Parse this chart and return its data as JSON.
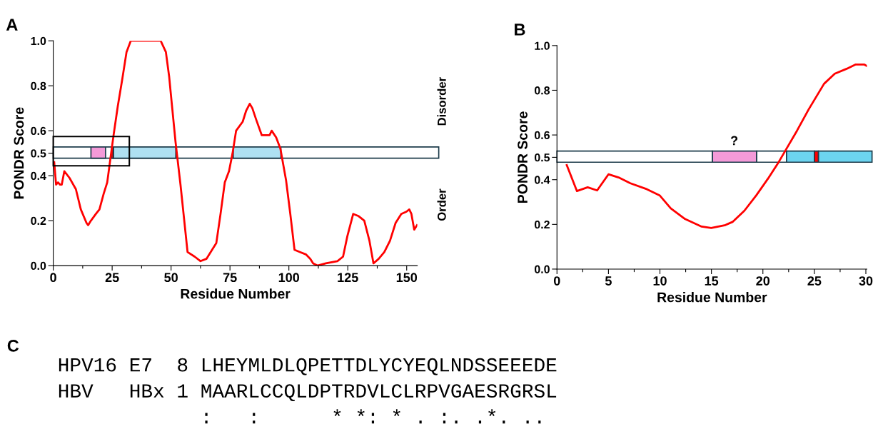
{
  "chart_data": [
    {
      "type": "line",
      "title": "A",
      "xlabel": "Residue Number",
      "ylabel": "PONDR Score",
      "x": [
        0.4,
        1.2,
        2,
        2.9,
        3.6,
        4.7,
        6.9,
        9.6,
        11.7,
        14.1,
        14.8,
        16,
        18.1,
        19.6,
        21.4,
        22.9,
        23.8,
        25.6,
        27.4,
        29.3,
        31.1,
        32.9,
        45.6,
        47.8,
        49.2,
        50.4,
        51.9,
        54,
        57,
        60,
        62.5,
        65,
        67.4,
        69.2,
        71,
        72.8,
        74.6,
        76.1,
        77.6,
        80.4,
        81.9,
        83.4,
        84.5,
        86.1,
        88.5,
        90.3,
        91.8,
        92.7,
        94.6,
        96.4,
        98.8,
        100.6,
        102.4,
        104.8,
        107.2,
        109.1,
        110.3,
        112.1,
        115.7,
        120.6,
        123,
        124.8,
        127.3,
        129.6,
        132,
        134.2,
        135.9,
        138.1,
        140.5,
        142.9,
        145.3,
        147.7,
        149.9,
        151.1,
        152,
        153.2,
        154.4
      ],
      "series": [
        {
          "color": "#ff0000",
          "values": [
            0.46,
            0.36,
            0.37,
            0.36,
            0.36,
            0.42,
            0.39,
            0.34,
            0.25,
            0.19,
            0.18,
            0.2,
            0.23,
            0.25,
            0.32,
            0.37,
            0.44,
            0.58,
            0.71,
            0.83,
            0.95,
            1.0,
            1.0,
            0.95,
            0.84,
            0.71,
            0.55,
            0.36,
            0.06,
            0.04,
            0.02,
            0.03,
            0.07,
            0.1,
            0.23,
            0.37,
            0.42,
            0.5,
            0.6,
            0.64,
            0.69,
            0.72,
            0.7,
            0.65,
            0.58,
            0.58,
            0.58,
            0.6,
            0.57,
            0.52,
            0.38,
            0.23,
            0.07,
            0.06,
            0.05,
            0.03,
            0.01,
            0.0,
            0.01,
            0.02,
            0.04,
            0.13,
            0.23,
            0.22,
            0.2,
            0.11,
            0.01,
            0.03,
            0.06,
            0.11,
            0.19,
            0.23,
            0.24,
            0.25,
            0.23,
            0.16,
            0.18
          ]
        }
      ],
      "xlim": [
        0,
        154.5
      ],
      "ylim": [
        0,
        1
      ],
      "xticks": [
        0,
        {
          "value": 12.5,
          "label": null
        },
        25,
        {
          "value": 37.5,
          "label": null
        },
        50,
        {
          "value": 62.5,
          "label": null
        },
        75,
        {
          "value": 87.5,
          "label": null
        },
        100,
        {
          "value": 112.5,
          "label": null
        },
        125,
        {
          "value": 137.5,
          "label": null
        },
        150
      ],
      "yticks": [
        {
          "value": 0,
          "label": "0.0"
        },
        {
          "value": 0.2,
          "label": "0.2"
        },
        {
          "value": 0.4,
          "label": "0.4"
        },
        {
          "value": 0.5,
          "label": "0.5"
        },
        {
          "value": 0.6,
          "label": "0.6"
        },
        {
          "value": 0.8,
          "label": "0.8"
        },
        {
          "value": 1,
          "label": "1.0"
        }
      ],
      "bands": [
        {
          "axis": "x",
          "from": 0,
          "to": 163.6,
          "color": "#ffffff"
        },
        {
          "axis": "x",
          "from": 16,
          "to": 22.2,
          "color": "#f49ad8"
        },
        {
          "axis": "x",
          "from": 24.8,
          "to": 25.6,
          "color": "#ff0000"
        },
        {
          "axis": "x",
          "from": 25.6,
          "to": 52,
          "color": "#aee0f2"
        },
        {
          "axis": "x",
          "from": 76.4,
          "to": 96.6,
          "color": "#aee0f2"
        }
      ],
      "annotations": [
        "Disorder",
        "Order"
      ],
      "grid": false,
      "line_style": "solid"
    },
    {
      "type": "line",
      "title": "B",
      "xlabel": "Residue Number",
      "ylabel": "PONDR Score",
      "x": [
        0.95,
        1.94,
        2.98,
        3.9,
        5.0,
        5.98,
        7.13,
        8.75,
        9.97,
        11.05,
        12.44,
        14.05,
        14.98,
        16.36,
        17.05,
        18.2,
        19.36,
        20.5,
        21.55,
        22.36,
        23.3,
        24.44,
        25.94,
        26.98,
        28.13,
        28.98,
        29.86,
        30.09
      ],
      "series": [
        {
          "color": "#ff0000",
          "values": [
            0.465,
            0.349,
            0.366,
            0.352,
            0.424,
            0.41,
            0.384,
            0.357,
            0.33,
            0.272,
            0.224,
            0.19,
            0.184,
            0.197,
            0.211,
            0.261,
            0.33,
            0.405,
            0.48,
            0.544,
            0.618,
            0.714,
            0.829,
            0.874,
            0.896,
            0.915,
            0.915,
            0.909
          ]
        }
      ],
      "xlim": [
        0,
        30.1
      ],
      "ylim": [
        0,
        1
      ],
      "xticks": [
        0,
        {
          "value": 2.5,
          "label": null
        },
        5,
        {
          "value": 7.5,
          "label": null
        },
        10,
        {
          "value": 12.5,
          "label": null
        },
        15,
        {
          "value": 17.5,
          "label": null
        },
        20,
        {
          "value": 22.5,
          "label": null
        },
        25,
        {
          "value": 27.5,
          "label": null
        },
        30
      ],
      "yticks": [
        {
          "value": 0,
          "label": "0.0"
        },
        {
          "value": 0.2,
          "label": "0.2"
        },
        {
          "value": 0.4,
          "label": "0.4"
        },
        {
          "value": 0.5,
          "label": "0.5"
        },
        {
          "value": 0.6,
          "label": "0.6"
        },
        {
          "value": 0.8,
          "label": "0.8"
        },
        {
          "value": 1,
          "label": "1.0"
        }
      ],
      "bands": [
        {
          "axis": "x",
          "from": 0,
          "to": 15.1,
          "color": "#ffffff"
        },
        {
          "axis": "x",
          "from": 15.1,
          "to": 19.4,
          "color": "#f49ad8"
        },
        {
          "axis": "x",
          "from": 19.4,
          "to": 22.3,
          "color": "#ffffff"
        },
        {
          "axis": "x",
          "from": 22.3,
          "to": 25.0,
          "color": "#6cd4f0"
        },
        {
          "axis": "x",
          "from": 25.0,
          "to": 25.4,
          "color": "#ff0000"
        },
        {
          "axis": "x",
          "from": 25.4,
          "to": 30.6,
          "color": "#6cd4f0"
        }
      ],
      "annotations": [
        "?"
      ],
      "grid": false,
      "line_style": "solid"
    },
    {
      "type": "other",
      "title": "C",
      "annotations": [
        "HPV16 E7  8 LHEYMLDLQPETTDLYCYEQLNDSSEEEDE",
        "HBV   HBx 1 MAARLCCQLDPTRDVLCLRPVGAESRGRSL",
        "            :   :      * *: * . :. .*. .."
      ]
    }
  ]
}
